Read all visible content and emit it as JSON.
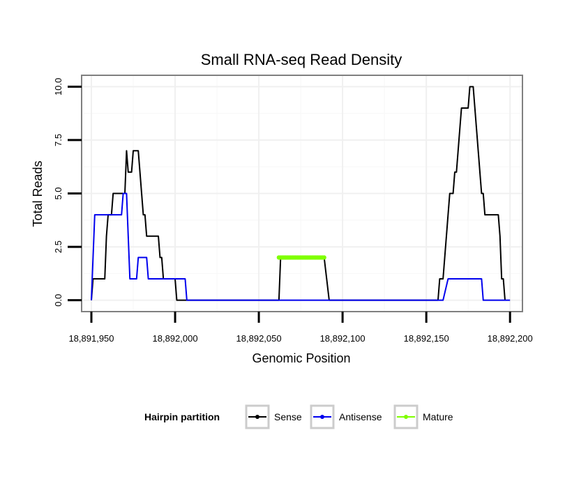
{
  "chart_data": {
    "type": "line",
    "title": "Small RNA-seq Read Density",
    "xlabel": "Genomic Position",
    "ylabel": "Total Reads",
    "xlim": [
      18891945,
      18892207
    ],
    "ylim": [
      -0.5,
      10.5
    ],
    "x_ticks": [
      18891950,
      18892000,
      18892050,
      18892100,
      18892150,
      18892200
    ],
    "x_tick_labels": [
      "18,891,950",
      "18,892,000",
      "18,892,050",
      "18,892,100",
      "18,892,150",
      "18,892,200"
    ],
    "y_ticks": [
      0,
      2.5,
      5,
      7.5,
      10
    ],
    "y_tick_labels": [
      "0.0",
      "2.5",
      "5.0",
      "7.5",
      "10.0"
    ],
    "grid": true,
    "legend": {
      "title": "Hairpin partition",
      "position": "bottom",
      "entries": [
        "Sense",
        "Antisense",
        "Mature"
      ]
    },
    "series": [
      {
        "name": "Sense",
        "color": "#000000",
        "points": [
          [
            18891950,
            0
          ],
          [
            18891951,
            1
          ],
          [
            18891958,
            1
          ],
          [
            18891959,
            3
          ],
          [
            18891960,
            4
          ],
          [
            18891962,
            4
          ],
          [
            18891963,
            5
          ],
          [
            18891970,
            5
          ],
          [
            18891971,
            7
          ],
          [
            18891972,
            6
          ],
          [
            18891974,
            6
          ],
          [
            18891975,
            7
          ],
          [
            18891978,
            7
          ],
          [
            18891979,
            6
          ],
          [
            18891980,
            5
          ],
          [
            18891981,
            4
          ],
          [
            18891982,
            4
          ],
          [
            18891983,
            3
          ],
          [
            18891990,
            3
          ],
          [
            18891991,
            2
          ],
          [
            18891992,
            2
          ],
          [
            18891993,
            1
          ],
          [
            18892000,
            1
          ],
          [
            18892001,
            0
          ],
          [
            18892062,
            0
          ],
          [
            18892063,
            2
          ],
          [
            18892089,
            2
          ],
          [
            18892092,
            0
          ],
          [
            18892157,
            0
          ],
          [
            18892158,
            1
          ],
          [
            18892160,
            1
          ],
          [
            18892161,
            2
          ],
          [
            18892162,
            3
          ],
          [
            18892163,
            4
          ],
          [
            18892164,
            5
          ],
          [
            18892166,
            5
          ],
          [
            18892167,
            6
          ],
          [
            18892168,
            6
          ],
          [
            18892169,
            7
          ],
          [
            18892170,
            8
          ],
          [
            18892171,
            9
          ],
          [
            18892175,
            9
          ],
          [
            18892176,
            10
          ],
          [
            18892178,
            10
          ],
          [
            18892179,
            9
          ],
          [
            18892180,
            8
          ],
          [
            18892181,
            7
          ],
          [
            18892182,
            6
          ],
          [
            18892183,
            5
          ],
          [
            18892184,
            5
          ],
          [
            18892185,
            4
          ],
          [
            18892193,
            4
          ],
          [
            18892194,
            3
          ],
          [
            18892195,
            1
          ],
          [
            18892196,
            1
          ],
          [
            18892197,
            0
          ]
        ]
      },
      {
        "name": "Antisense",
        "color": "#0000ee",
        "points": [
          [
            18891950,
            0
          ],
          [
            18891951,
            2
          ],
          [
            18891952,
            4
          ],
          [
            18891968,
            4
          ],
          [
            18891969,
            5
          ],
          [
            18891971,
            5
          ],
          [
            18891972,
            3
          ],
          [
            18891973,
            1
          ],
          [
            18891977,
            1
          ],
          [
            18891978,
            2
          ],
          [
            18891983,
            2
          ],
          [
            18891984,
            1
          ],
          [
            18891997,
            1
          ],
          [
            18891998,
            1
          ],
          [
            18892006,
            1
          ],
          [
            18892007,
            0
          ],
          [
            18892160,
            0
          ],
          [
            18892163,
            1
          ],
          [
            18892183,
            1
          ],
          [
            18892184,
            0
          ],
          [
            18892200,
            0
          ]
        ]
      },
      {
        "name": "Mature",
        "color": "#7fff00",
        "points": [
          [
            18892062,
            2
          ],
          [
            18892063,
            2
          ],
          [
            18892064,
            2
          ],
          [
            18892065,
            2
          ],
          [
            18892066,
            2
          ],
          [
            18892067,
            2
          ],
          [
            18892068,
            2
          ],
          [
            18892069,
            2
          ],
          [
            18892070,
            2
          ],
          [
            18892071,
            2
          ],
          [
            18892072,
            2
          ],
          [
            18892073,
            2
          ],
          [
            18892074,
            2
          ],
          [
            18892075,
            2
          ],
          [
            18892076,
            2
          ],
          [
            18892077,
            2
          ],
          [
            18892078,
            2
          ],
          [
            18892079,
            2
          ],
          [
            18892080,
            2
          ],
          [
            18892081,
            2
          ],
          [
            18892082,
            2
          ],
          [
            18892083,
            2
          ],
          [
            18892084,
            2
          ],
          [
            18892085,
            2
          ],
          [
            18892086,
            2
          ],
          [
            18892087,
            2
          ],
          [
            18892088,
            2
          ],
          [
            18892089,
            2
          ]
        ]
      }
    ]
  }
}
